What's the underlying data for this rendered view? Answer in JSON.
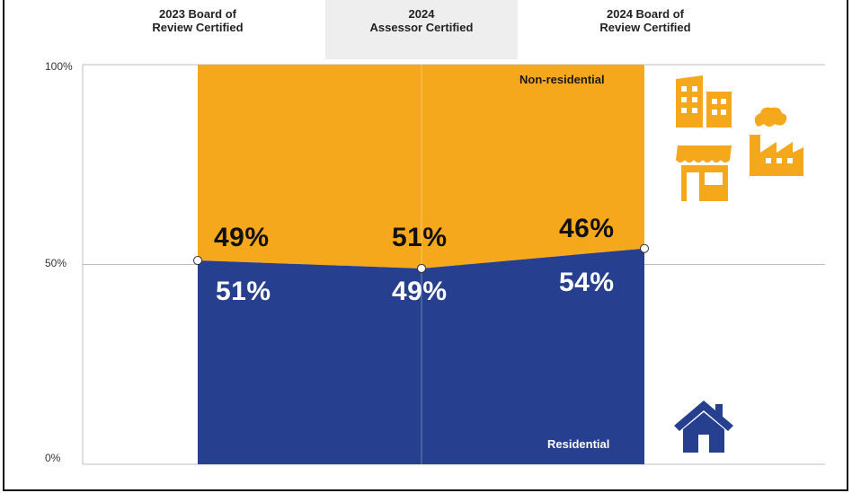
{
  "chart_data": {
    "type": "area",
    "title": "",
    "xlabel": "",
    "ylabel": "",
    "ylim": [
      0,
      100
    ],
    "y_ticks": [
      "100%",
      "50%",
      "0%"
    ],
    "categories": [
      "2023 Board of Review Certified",
      "2024 Assessor Certified",
      "2024 Board of Review Certified"
    ],
    "category_lines": [
      [
        "2023 Board of",
        "Review Certified"
      ],
      [
        "2024",
        "Assessor Certified"
      ],
      [
        "2024 Board of",
        "Review Certified"
      ]
    ],
    "highlighted_category": 1,
    "series": [
      {
        "name": "Residential",
        "values": [
          51,
          49,
          54
        ],
        "labels": [
          "51%",
          "49%",
          "54%"
        ]
      },
      {
        "name": "Non-residential",
        "values": [
          49,
          51,
          46
        ],
        "labels": [
          "49%",
          "51%",
          "46%"
        ]
      }
    ],
    "stacked": true,
    "grid": true,
    "legend": "inline"
  },
  "colors": {
    "residential": "#263F8F",
    "non_residential": "#F5A81C",
    "icon": "#F5A81C",
    "house_icon": "#263F8F",
    "header_highlight": "#EEEEEE"
  },
  "icons": {
    "non_residential": [
      "office-building-icon",
      "storefront-icon",
      "factory-icon"
    ],
    "residential": "house-icon"
  }
}
